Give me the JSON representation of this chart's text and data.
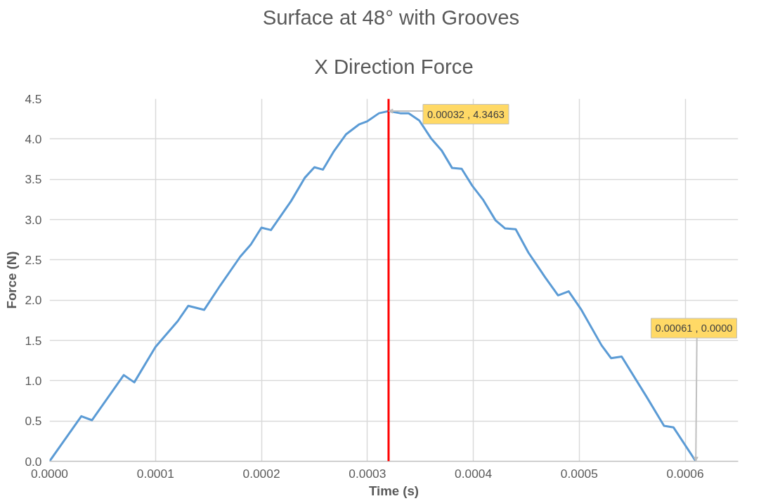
{
  "chart_data": {
    "type": "line",
    "title": "Surface at 48°  with Grooves",
    "subtitle": "X Direction Force",
    "xlabel": "Time (s)",
    "ylabel": "Force (N)",
    "x": [
      0,
      3e-05,
      4e-05,
      7e-05,
      8e-05,
      0.0001,
      0.000121,
      0.000131,
      0.000146,
      0.000161,
      0.00018,
      0.00019,
      0.0002,
      0.000209,
      0.000228,
      0.000241,
      0.00025,
      0.000258,
      0.000268,
      0.00028,
      0.000292,
      0.0003,
      0.000311,
      0.00032,
      0.000331,
      0.000339,
      0.000349,
      0.00036,
      0.00037,
      0.00038,
      0.000389,
      0.000399,
      0.000409,
      0.000421,
      0.00043,
      0.00044,
      0.000452,
      0.000468,
      0.00048,
      0.00049,
      0.000502,
      0.000521,
      0.00053,
      0.00054,
      0.000564,
      0.00058,
      0.000589,
      0.00061
    ],
    "series": [
      {
        "color": "#5b9bd5",
        "values": [
          0,
          0.56,
          0.51,
          1.07,
          0.98,
          1.42,
          1.74,
          1.93,
          1.88,
          2.18,
          2.54,
          2.69,
          2.9,
          2.87,
          3.23,
          3.52,
          3.65,
          3.62,
          3.84,
          4.06,
          4.18,
          4.22,
          4.32,
          4.3463,
          4.32,
          4.32,
          4.23,
          4.01,
          3.86,
          3.64,
          3.63,
          3.42,
          3.25,
          2.99,
          2.89,
          2.88,
          2.59,
          2.28,
          2.06,
          2.11,
          1.88,
          1.44,
          1.28,
          1.3,
          0.79,
          0.44,
          0.42,
          0
        ]
      }
    ],
    "xlim": [
      0,
      0.00065
    ],
    "ylim": [
      0,
      4.5
    ],
    "xticks": [
      {
        "value": 0,
        "label": "0.0000"
      },
      {
        "value": 0.0001,
        "label": "0.0001"
      },
      {
        "value": 0.0002,
        "label": "0.0002"
      },
      {
        "value": 0.0003,
        "label": "0.0003"
      },
      {
        "value": 0.0004,
        "label": "0.0004"
      },
      {
        "value": 0.0005,
        "label": "0.0005"
      },
      {
        "value": 0.0006,
        "label": "0.0006"
      }
    ],
    "yticks": [
      {
        "value": 0,
        "label": "0.0"
      },
      {
        "value": 0.5,
        "label": "0.5"
      },
      {
        "value": 1,
        "label": "1.0"
      },
      {
        "value": 1.5,
        "label": "1.5"
      },
      {
        "value": 2,
        "label": "2.0"
      },
      {
        "value": 2.5,
        "label": "2.5"
      },
      {
        "value": 3,
        "label": "3.0"
      },
      {
        "value": 3.5,
        "label": "3.5"
      },
      {
        "value": 4,
        "label": "4.0"
      },
      {
        "value": 4.5,
        "label": "4.5"
      }
    ],
    "grid": true,
    "ref_lines": [
      {
        "axis": "x",
        "value": 0.00032,
        "color": "#ff0000"
      }
    ],
    "annotations": [
      {
        "text": "0.00032 , 4.3463",
        "x": 0.00032,
        "y": 4.3463
      },
      {
        "text": "0.00061 , 0.0000",
        "x": 0.00061,
        "y": 0
      }
    ]
  }
}
